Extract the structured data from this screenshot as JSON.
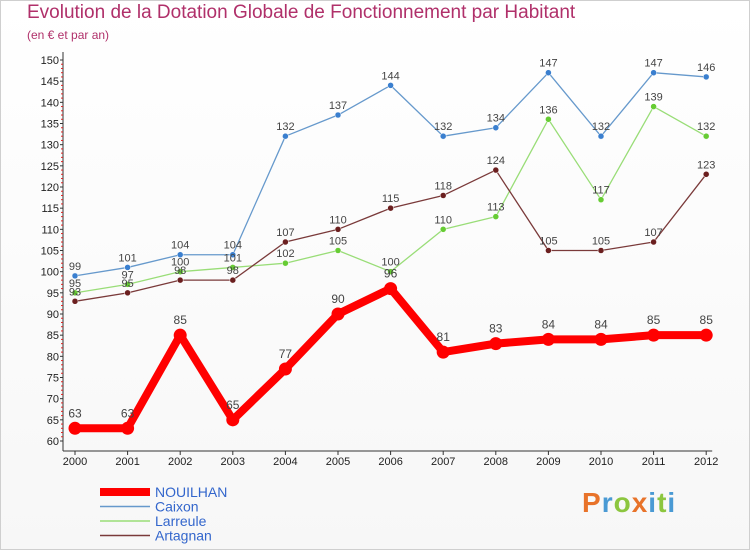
{
  "title": "Evolution de la Dotation Globale de Fonctionnement par Habitant",
  "subtitle": "(en € et par an)",
  "logo": {
    "text": "Proxiti",
    "letters": [
      {
        "ch": "P",
        "color": "#e8732a"
      },
      {
        "ch": "r",
        "color": "#4a9ad4"
      },
      {
        "ch": "o",
        "color": "#8cc63f"
      },
      {
        "ch": "x",
        "color": "#e8732a"
      },
      {
        "ch": "i",
        "color": "#4a9ad4"
      },
      {
        "ch": "t",
        "color": "#8cc63f"
      },
      {
        "ch": "i",
        "color": "#4a9ad4"
      }
    ]
  },
  "chart_data": {
    "type": "line",
    "title": "Evolution de la Dotation Globale de Fonctionnement par Habitant",
    "subtitle": "(en € et par an)",
    "x": [
      "2000",
      "2001",
      "2002",
      "2003",
      "2004",
      "2005",
      "2006",
      "2007",
      "2008",
      "2009",
      "2010",
      "2011",
      "2012"
    ],
    "ylim": [
      60,
      150
    ],
    "ytick_step": 5,
    "grid": false,
    "legend_position": "bottom-left",
    "series": [
      {
        "name": "NOUILHAN",
        "color": "#ff0000",
        "marker_color": "#ff0000",
        "emphasis": true,
        "values": [
          63,
          63,
          85,
          65,
          77,
          90,
          96,
          81,
          83,
          84,
          84,
          85,
          85
        ]
      },
      {
        "name": "Caixon",
        "color": "#6699cc",
        "marker_color": "#3a7fcf",
        "values": [
          99,
          101,
          104,
          104,
          132,
          137,
          144,
          132,
          134,
          147,
          132,
          147,
          146
        ]
      },
      {
        "name": "Larreule",
        "color": "#99dd77",
        "marker_color": "#66cc33",
        "values": [
          95,
          97,
          100,
          101,
          102,
          105,
          100,
          110,
          113,
          136,
          117,
          139,
          132
        ]
      },
      {
        "name": "Artagnan",
        "color": "#7a3a3a",
        "marker_color": "#6b1f1f",
        "values": [
          93,
          95,
          98,
          98,
          107,
          110,
          115,
          118,
          124,
          105,
          105,
          107,
          123
        ]
      }
    ]
  }
}
